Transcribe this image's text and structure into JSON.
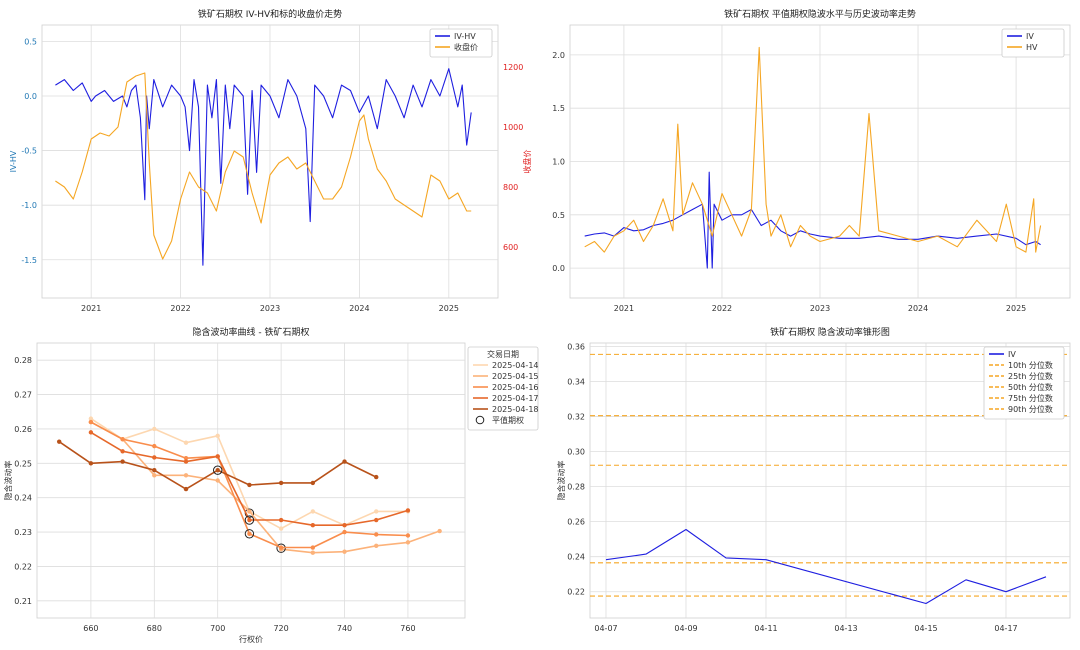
{
  "chart_data": [
    {
      "id": "p1",
      "type": "line",
      "title": "铁矿石期权 IV-HV和标的收盘价走势",
      "xlabel": "",
      "ylabel": "IV-HV",
      "y2label": "收盘价",
      "xlim": [
        2020.45,
        2025.55
      ],
      "ylim": [
        -1.85,
        0.65
      ],
      "y2lim": [
        430,
        1340
      ],
      "xticks": [
        2021,
        2022,
        2023,
        2024,
        2025
      ],
      "xtick_labels": [
        "2021",
        "2022",
        "2023",
        "2024",
        "2025"
      ],
      "yticks": [
        -1.5,
        -1.0,
        -0.5,
        0.0,
        0.5
      ],
      "ytick_labels": [
        "-1.5",
        "-1.0",
        "-0.5",
        "0.0",
        "0.5"
      ],
      "y2ticks": [
        600,
        800,
        1000,
        1200
      ],
      "y2tick_labels": [
        "600",
        "800",
        "1000",
        "1200"
      ],
      "grid": true,
      "legend": "top-right",
      "colors": {
        "IV-HV": "#1f1fe0",
        "收盘价": "#f5a623",
        "left_axis": "#1f77b4",
        "right_axis": "#e02020"
      },
      "series": [
        {
          "name": "IV-HV",
          "axis": "left",
          "x": [
            2020.6,
            2020.7,
            2020.8,
            2020.9,
            2021.0,
            2021.05,
            2021.15,
            2021.25,
            2021.35,
            2021.4,
            2021.45,
            2021.5,
            2021.55,
            2021.6,
            2021.62,
            2021.65,
            2021.7,
            2021.8,
            2021.9,
            2022.0,
            2022.05,
            2022.1,
            2022.15,
            2022.2,
            2022.25,
            2022.3,
            2022.35,
            2022.4,
            2022.45,
            2022.5,
            2022.55,
            2022.6,
            2022.7,
            2022.75,
            2022.8,
            2022.85,
            2022.9,
            2023.0,
            2023.1,
            2023.2,
            2023.3,
            2023.4,
            2023.45,
            2023.5,
            2023.6,
            2023.7,
            2023.8,
            2023.9,
            2024.0,
            2024.1,
            2024.2,
            2024.3,
            2024.4,
            2024.5,
            2024.6,
            2024.7,
            2024.8,
            2024.9,
            2025.0,
            2025.1,
            2025.15,
            2025.2,
            2025.25
          ],
          "y": [
            0.1,
            0.15,
            0.05,
            0.12,
            -0.05,
            0.0,
            0.05,
            -0.05,
            0.0,
            -0.1,
            0.05,
            0.1,
            -0.2,
            -0.95,
            0.0,
            -0.3,
            0.15,
            -0.1,
            0.1,
            0.0,
            -0.1,
            -0.5,
            0.15,
            -0.1,
            -1.55,
            0.1,
            -0.2,
            0.15,
            -0.8,
            0.1,
            -0.3,
            0.1,
            0.0,
            -0.9,
            0.05,
            -0.7,
            0.1,
            0.0,
            -0.2,
            0.15,
            0.0,
            -0.3,
            -1.15,
            0.1,
            0.0,
            -0.2,
            0.1,
            0.05,
            -0.15,
            0.0,
            -0.3,
            0.15,
            0.0,
            -0.2,
            0.1,
            -0.1,
            0.15,
            0.0,
            0.25,
            -0.1,
            0.1,
            -0.45,
            -0.15
          ]
        },
        {
          "name": "收盘价",
          "axis": "right",
          "x": [
            2020.6,
            2020.7,
            2020.8,
            2020.9,
            2021.0,
            2021.1,
            2021.2,
            2021.3,
            2021.4,
            2021.5,
            2021.6,
            2021.65,
            2021.7,
            2021.8,
            2021.9,
            2022.0,
            2022.1,
            2022.2,
            2022.3,
            2022.4,
            2022.5,
            2022.6,
            2022.7,
            2022.8,
            2022.9,
            2023.0,
            2023.1,
            2023.2,
            2023.3,
            2023.4,
            2023.5,
            2023.6,
            2023.7,
            2023.8,
            2023.9,
            2024.0,
            2024.05,
            2024.1,
            2024.2,
            2024.3,
            2024.4,
            2024.5,
            2024.6,
            2024.7,
            2024.8,
            2024.9,
            2025.0,
            2025.1,
            2025.2,
            2025.25
          ],
          "y": [
            820,
            800,
            760,
            850,
            960,
            980,
            970,
            1000,
            1150,
            1170,
            1180,
            880,
            640,
            560,
            620,
            760,
            850,
            800,
            780,
            720,
            850,
            920,
            900,
            780,
            680,
            840,
            880,
            900,
            860,
            880,
            820,
            760,
            760,
            800,
            900,
            1020,
            1040,
            960,
            860,
            820,
            760,
            740,
            720,
            700,
            840,
            820,
            760,
            780,
            720,
            720
          ]
        }
      ]
    },
    {
      "id": "p2",
      "type": "line",
      "title": "铁矿石期权 平值期权隐波水平与历史波动率走势",
      "xlabel": "",
      "ylabel": "",
      "xlim": [
        2020.45,
        2025.55
      ],
      "ylim": [
        -0.28,
        2.28
      ],
      "xticks": [
        2021,
        2022,
        2023,
        2024,
        2025
      ],
      "xtick_labels": [
        "2021",
        "2022",
        "2023",
        "2024",
        "2025"
      ],
      "yticks": [
        0.0,
        0.5,
        1.0,
        1.5,
        2.0
      ],
      "ytick_labels": [
        "0.0",
        "0.5",
        "1.0",
        "1.5",
        "2.0"
      ],
      "grid": true,
      "legend": "top-right",
      "colors": {
        "IV": "#1f1fe0",
        "HV": "#f5a623"
      },
      "series": [
        {
          "name": "IV",
          "x": [
            2020.6,
            2020.7,
            2020.8,
            2020.9,
            2021.0,
            2021.1,
            2021.2,
            2021.3,
            2021.4,
            2021.5,
            2021.6,
            2021.7,
            2021.8,
            2021.85,
            2021.87,
            2021.9,
            2021.92,
            2022.0,
            2022.1,
            2022.2,
            2022.3,
            2022.4,
            2022.5,
            2022.6,
            2022.7,
            2022.8,
            2022.9,
            2023.0,
            2023.2,
            2023.4,
            2023.6,
            2023.8,
            2024.0,
            2024.2,
            2024.4,
            2024.6,
            2024.8,
            2025.0,
            2025.1,
            2025.2,
            2025.25
          ],
          "y": [
            0.3,
            0.32,
            0.33,
            0.3,
            0.38,
            0.35,
            0.36,
            0.4,
            0.42,
            0.45,
            0.5,
            0.55,
            0.6,
            0.0,
            0.9,
            0.0,
            0.6,
            0.45,
            0.5,
            0.5,
            0.55,
            0.4,
            0.45,
            0.35,
            0.3,
            0.35,
            0.32,
            0.3,
            0.28,
            0.28,
            0.3,
            0.27,
            0.27,
            0.3,
            0.28,
            0.3,
            0.32,
            0.28,
            0.22,
            0.25,
            0.22
          ]
        },
        {
          "name": "HV",
          "x": [
            2020.6,
            2020.7,
            2020.8,
            2020.9,
            2021.0,
            2021.1,
            2021.2,
            2021.3,
            2021.4,
            2021.5,
            2021.55,
            2021.6,
            2021.7,
            2021.8,
            2021.9,
            2022.0,
            2022.1,
            2022.2,
            2022.3,
            2022.38,
            2022.45,
            2022.5,
            2022.6,
            2022.7,
            2022.8,
            2022.9,
            2023.0,
            2023.2,
            2023.3,
            2023.4,
            2023.5,
            2023.6,
            2023.8,
            2024.0,
            2024.2,
            2024.4,
            2024.6,
            2024.8,
            2024.9,
            2025.0,
            2025.1,
            2025.18,
            2025.2,
            2025.25
          ],
          "y": [
            0.2,
            0.25,
            0.15,
            0.3,
            0.35,
            0.45,
            0.25,
            0.4,
            0.65,
            0.35,
            1.35,
            0.5,
            0.8,
            0.6,
            0.3,
            0.7,
            0.5,
            0.3,
            0.55,
            2.07,
            0.6,
            0.3,
            0.5,
            0.2,
            0.4,
            0.3,
            0.25,
            0.3,
            0.4,
            0.3,
            1.45,
            0.35,
            0.3,
            0.25,
            0.3,
            0.2,
            0.45,
            0.25,
            0.6,
            0.2,
            0.15,
            0.65,
            0.15,
            0.4
          ]
        }
      ]
    },
    {
      "id": "p3",
      "type": "line",
      "title": "隐含波动率曲线 - 铁矿石期权",
      "xlabel": "行权价",
      "ylabel": "隐含波动率",
      "xlim": [
        643,
        778
      ],
      "ylim": [
        0.205,
        0.285
      ],
      "xticks": [
        660,
        680,
        700,
        720,
        740,
        760
      ],
      "xtick_labels": [
        "660",
        "680",
        "700",
        "720",
        "740",
        "760"
      ],
      "yticks": [
        0.21,
        0.22,
        0.23,
        0.24,
        0.25,
        0.26,
        0.27,
        0.28
      ],
      "ytick_labels": [
        "0.21",
        "0.22",
        "0.23",
        "0.24",
        "0.25",
        "0.26",
        "0.27",
        "0.28"
      ],
      "grid": true,
      "legend": "top-right",
      "legend_title": "交易日期",
      "legend_marker_label": "平值期权",
      "series": [
        {
          "name": "2025-04-14",
          "color": "#fdd7b0",
          "x": [
            660,
            670,
            680,
            690,
            700,
            710,
            720,
            730,
            740,
            750,
            760
          ],
          "y": [
            0.263,
            0.257,
            0.26,
            0.256,
            0.258,
            0.236,
            0.231,
            0.236,
            0.232,
            0.236,
            0.236
          ],
          "atm": [
            710,
            0.2355
          ]
        },
        {
          "name": "2025-04-15",
          "color": "#fcb27a",
          "x": [
            660,
            670,
            680,
            690,
            700,
            710,
            720,
            730,
            740,
            750,
            760,
            770
          ],
          "y": [
            0.262,
            0.257,
            0.2465,
            0.2465,
            0.245,
            0.236,
            0.225,
            0.224,
            0.2243,
            0.226,
            0.227,
            0.2303
          ],
          "atm": [
            720,
            0.2253
          ]
        },
        {
          "name": "2025-04-16",
          "color": "#f98d4c",
          "x": [
            660,
            670,
            680,
            690,
            700,
            710,
            720,
            730,
            740,
            750,
            760
          ],
          "y": [
            0.262,
            0.257,
            0.255,
            0.2515,
            0.252,
            0.2295,
            0.2255,
            0.2255,
            0.23,
            0.2293,
            0.229
          ],
          "atm": [
            710,
            0.2295
          ]
        },
        {
          "name": "2025-04-17",
          "color": "#e6682a",
          "x": [
            660,
            670,
            680,
            690,
            700,
            710,
            720,
            730,
            740,
            750,
            760
          ],
          "y": [
            0.259,
            0.2535,
            0.2517,
            0.2505,
            0.252,
            0.2335,
            0.2335,
            0.232,
            0.232,
            0.2335,
            0.2363
          ],
          "atm": [
            710,
            0.2335
          ]
        },
        {
          "name": "2025-04-18",
          "color": "#b8521a",
          "x": [
            650,
            660,
            670,
            680,
            690,
            700,
            710,
            720,
            730,
            740,
            750
          ],
          "y": [
            0.2563,
            0.25,
            0.2505,
            0.248,
            0.2425,
            0.248,
            0.2437,
            0.2443,
            0.2443,
            0.2505,
            0.246
          ],
          "atm": [
            700,
            0.248
          ]
        }
      ]
    },
    {
      "id": "p4",
      "type": "line",
      "title": "铁矿石期权 隐含波动率锥形图",
      "xlabel": "",
      "ylabel": "隐含波动率",
      "xlim": [
        -0.4,
        11.6
      ],
      "ylim": [
        0.205,
        0.362
      ],
      "xticks": [
        0,
        2,
        4,
        6,
        8,
        10
      ],
      "xtick_labels": [
        "04-07",
        "04-09",
        "04-11",
        "04-13",
        "04-15",
        "04-17"
      ],
      "yticks": [
        0.22,
        0.24,
        0.26,
        0.28,
        0.3,
        0.32,
        0.34,
        0.36
      ],
      "ytick_labels": [
        "0.22",
        "0.24",
        "0.26",
        "0.28",
        "0.30",
        "0.32",
        "0.34",
        "0.36"
      ],
      "grid": true,
      "legend": "top-right",
      "colors": {
        "IV": "#1f1fe0",
        "percentile": "#f5a623"
      },
      "series": [
        {
          "name": "IV",
          "x": [
            0,
            1,
            2,
            3,
            4,
            8,
            9,
            10,
            11
          ],
          "y": [
            0.2383,
            0.2415,
            0.2555,
            0.2393,
            0.2383,
            0.2133,
            0.2268,
            0.22,
            0.2285
          ]
        }
      ],
      "percentiles": [
        {
          "name": "10th 分位数",
          "value": 0.2175
        },
        {
          "name": "25th 分位数",
          "value": 0.2365
        },
        {
          "name": "50th 分位数",
          "value": 0.2922
        },
        {
          "name": "75th 分位数",
          "value": 0.3205
        },
        {
          "name": "90th 分位数",
          "value": 0.3555
        }
      ]
    }
  ]
}
